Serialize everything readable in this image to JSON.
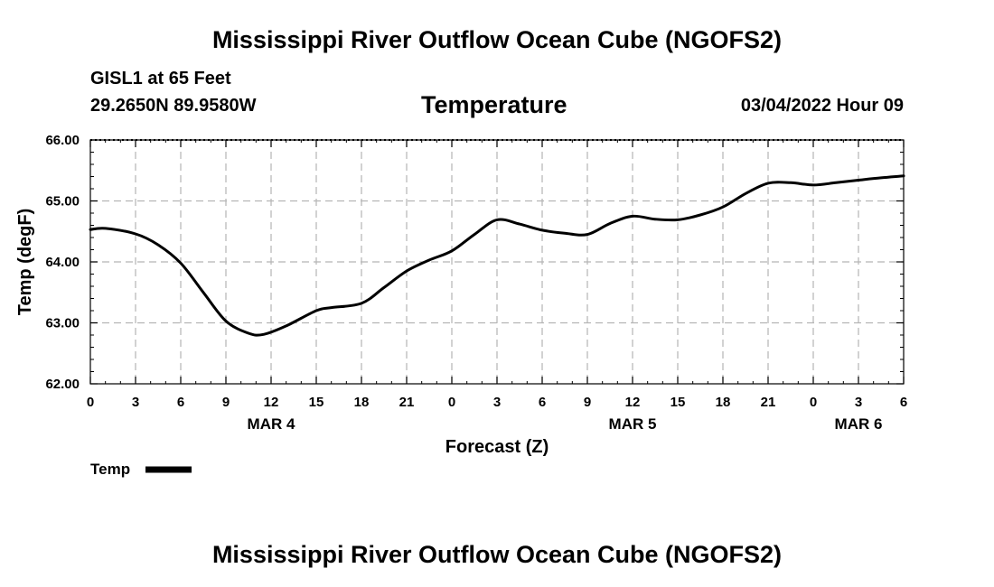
{
  "header": {
    "main_title": "Mississippi River Outflow Ocean Cube (NGOFS2)",
    "station": "GISL1 at 65 Feet",
    "coords": "29.2650N  89.9580W",
    "panel_title": "Temperature",
    "run_time": "03/04/2022 Hour 09",
    "footer_title": "Mississippi River Outflow Ocean Cube (NGOFS2)"
  },
  "chart_data": {
    "type": "line",
    "title": "Temperature",
    "xlabel": "Forecast (Z)",
    "ylabel": "Temp (degF)",
    "xlim": [
      0,
      54
    ],
    "ylim": [
      62.0,
      66.0
    ],
    "grid": true,
    "x_tick_values": [
      0,
      3,
      6,
      9,
      12,
      15,
      18,
      21,
      24,
      27,
      30,
      33,
      36,
      39,
      42,
      45,
      48,
      51,
      54
    ],
    "x_tick_labels": [
      "0",
      "3",
      "6",
      "9",
      "12",
      "15",
      "18",
      "21",
      "0",
      "3",
      "6",
      "9",
      "12",
      "15",
      "18",
      "21",
      "0",
      "3",
      "6"
    ],
    "y_tick_values": [
      62,
      63,
      64,
      65,
      66
    ],
    "y_tick_labels": [
      "62.00",
      "63.00",
      "64.00",
      "65.00",
      "66.00"
    ],
    "day_labels": [
      {
        "x": 12,
        "label": "MAR 4"
      },
      {
        "x": 36,
        "label": "MAR 5"
      },
      {
        "x": 51,
        "label": "MAR 6"
      }
    ],
    "legend": {
      "label": "Temp",
      "placement": "bottom-left"
    },
    "series": [
      {
        "name": "Temp",
        "x": [
          0,
          1,
          3,
          4.5,
          6,
          7.5,
          9,
          10.5,
          11.5,
          13,
          15,
          16,
          18,
          19.5,
          21,
          22.5,
          24,
          25.5,
          27,
          28.5,
          30,
          31.5,
          33,
          34.5,
          36,
          37.5,
          39,
          40.5,
          42,
          43.5,
          45,
          46.5,
          48,
          49.5,
          51,
          52.5,
          54
        ],
        "values": [
          64.53,
          64.55,
          64.46,
          64.28,
          63.98,
          63.5,
          63.03,
          62.83,
          62.81,
          62.95,
          63.2,
          63.25,
          63.32,
          63.58,
          63.85,
          64.03,
          64.18,
          64.45,
          64.69,
          64.62,
          64.52,
          64.47,
          64.45,
          64.63,
          64.75,
          64.7,
          64.69,
          64.77,
          64.9,
          65.12,
          65.29,
          65.3,
          65.26,
          65.3,
          65.34,
          65.38,
          65.41
        ]
      }
    ]
  }
}
